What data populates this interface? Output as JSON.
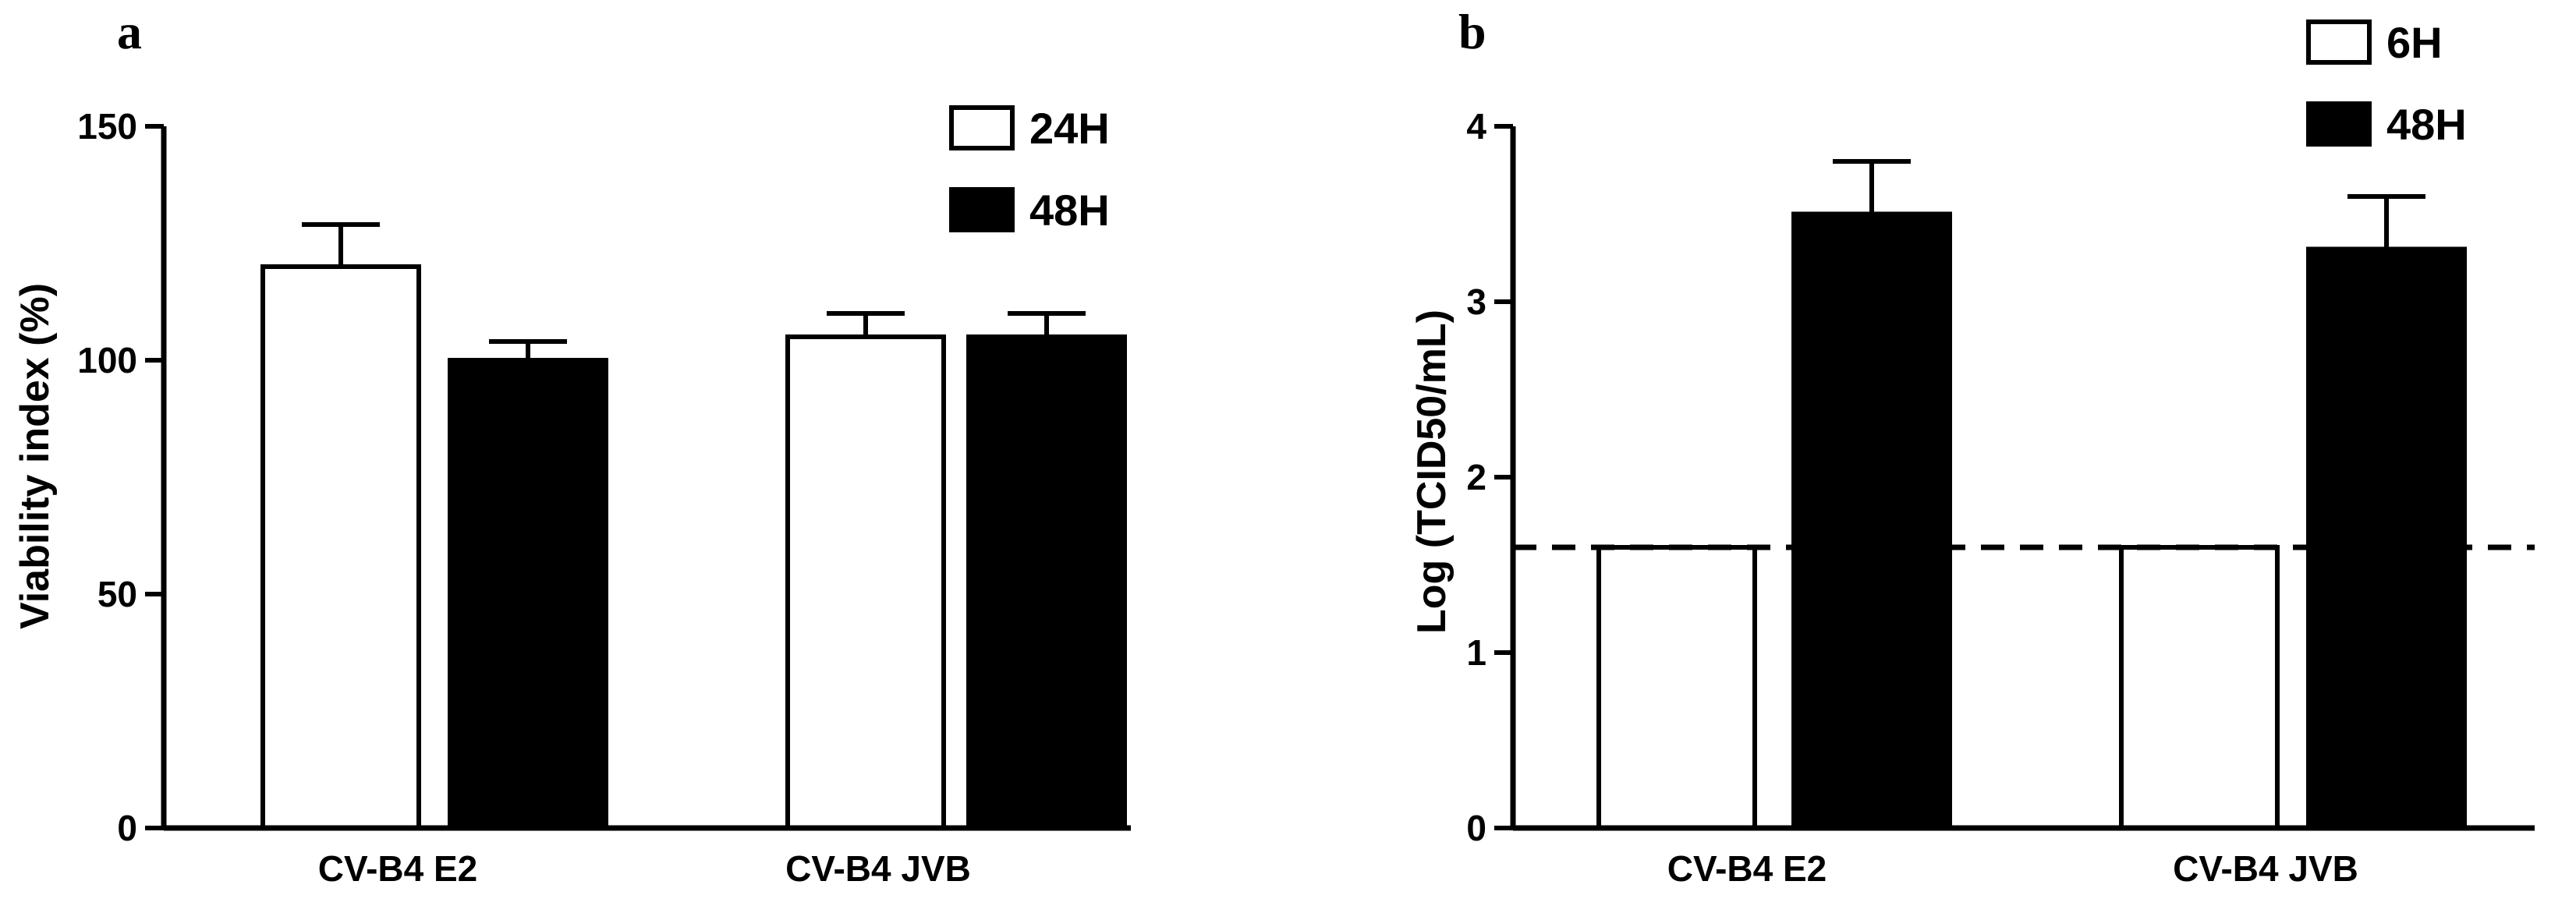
{
  "chart_data": [
    {
      "type": "bar",
      "panel_label": "a",
      "ylabel": "Viability index (%)",
      "xlabel": "",
      "ylim": [
        0,
        150
      ],
      "yticks": [
        0,
        50,
        100,
        150
      ],
      "categories": [
        "CV-B4 E2",
        "CV-B4 JVB"
      ],
      "series": [
        {
          "name": "24H",
          "color": "#ffffff",
          "values": [
            120,
            105
          ],
          "errors": [
            9,
            5
          ]
        },
        {
          "name": "48H",
          "color": "#000000",
          "values": [
            100,
            105
          ],
          "errors": [
            4,
            5
          ]
        }
      ],
      "legend": "top-right",
      "grid": false
    },
    {
      "type": "bar",
      "panel_label": "b",
      "ylabel": "Log (TCID50/mL)",
      "xlabel": "",
      "ylim": [
        0,
        4
      ],
      "yticks": [
        0,
        1,
        2,
        3,
        4
      ],
      "categories": [
        "CV-B4 E2",
        "CV-B4 JVB"
      ],
      "series": [
        {
          "name": "6H",
          "color": "#ffffff",
          "values": [
            1.6,
            1.6
          ],
          "errors": [
            0,
            0
          ]
        },
        {
          "name": "48H",
          "color": "#000000",
          "values": [
            3.5,
            3.3
          ],
          "errors": [
            0.3,
            0.3
          ]
        }
      ],
      "reference_line": {
        "y": 1.6,
        "style": "dashed"
      },
      "legend": "top-right",
      "grid": false
    }
  ]
}
